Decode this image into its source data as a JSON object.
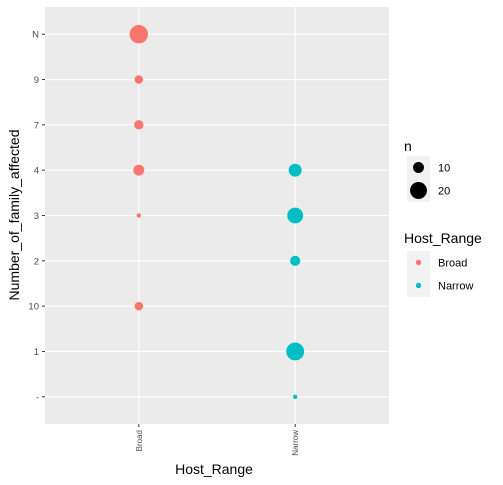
{
  "chart_data": {
    "type": "scatter",
    "xlabel": "Host_Range",
    "ylabel": "Number_of_family_affected",
    "categories": [
      "Broad",
      "Narrow"
    ],
    "y_categories": [
      "-",
      "1",
      "10",
      "2",
      "3",
      "4",
      "7",
      "9",
      "N"
    ],
    "points": [
      {
        "x": "Broad",
        "y": "N",
        "n": 23
      },
      {
        "x": "Broad",
        "y": "9",
        "n": 7
      },
      {
        "x": "Broad",
        "y": "7",
        "n": 8
      },
      {
        "x": "Broad",
        "y": "4",
        "n": 10
      },
      {
        "x": "Broad",
        "y": "3",
        "n": 3
      },
      {
        "x": "Broad",
        "y": "10",
        "n": 7
      },
      {
        "x": "Narrow",
        "y": "4",
        "n": 13
      },
      {
        "x": "Narrow",
        "y": "3",
        "n": 18
      },
      {
        "x": "Narrow",
        "y": "2",
        "n": 9
      },
      {
        "x": "Narrow",
        "y": "1",
        "n": 22
      },
      {
        "x": "Narrow",
        "y": "-",
        "n": 3
      }
    ],
    "size_legend": {
      "title": "n",
      "breaks": [
        "10",
        "20"
      ],
      "values": [
        10,
        20
      ]
    },
    "color_legend": {
      "title": "Host_Range",
      "items": [
        {
          "label": "Broad",
          "color": "#F8766D"
        },
        {
          "label": "Narrow",
          "color": "#00BFC4"
        }
      ]
    },
    "legend_position": "right",
    "grid": true
  },
  "colors": {
    "panel_bg": "#EBEBEB",
    "grid_major": "#FFFFFF",
    "grid_minor": "#F2F2F2",
    "tick_text": "#4D4D4D",
    "Broad": "#F8766D",
    "Narrow": "#00BFC4"
  }
}
